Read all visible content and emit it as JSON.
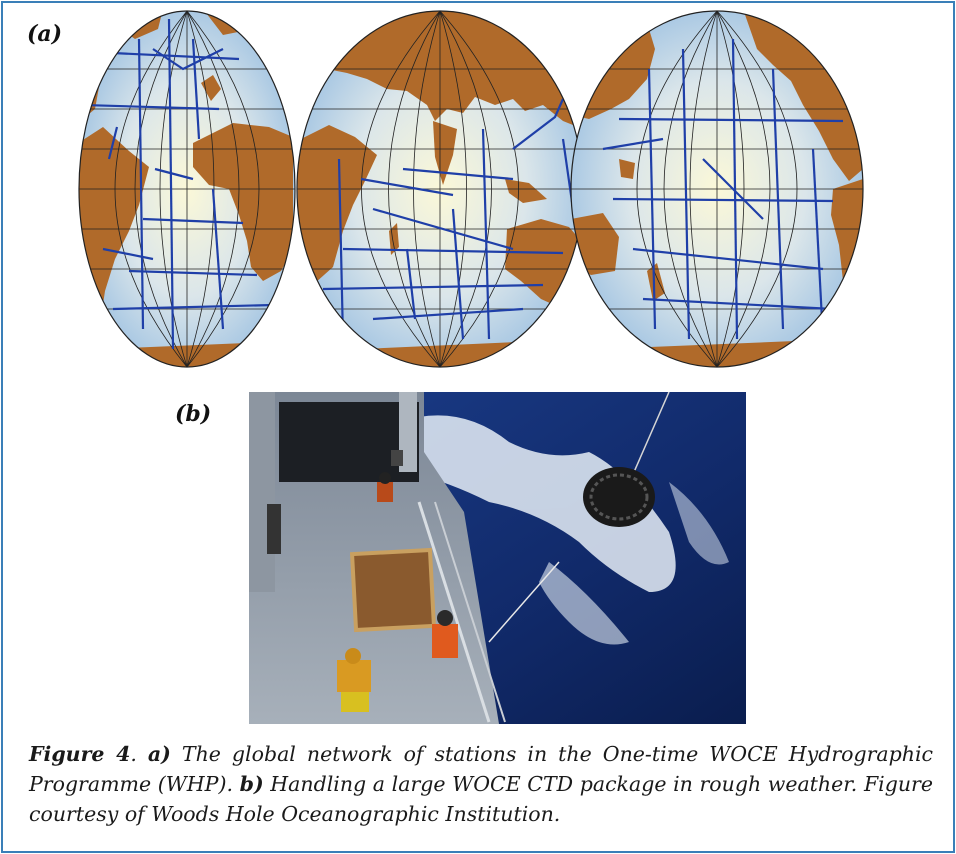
{
  "panel_a": {
    "label": "(a)"
  },
  "panel_b": {
    "label": "(b)"
  },
  "caption": {
    "figure_label": "Figure 4",
    "sep1": ". ",
    "part_a_label": "a)",
    "part_a_text": " The global network of stations in the One-time WOCE Hydrographic Programme (WHP). ",
    "part_b_label": "b)",
    "part_b_text": " Handling a large WOCE CTD package in rough weather. Figure courtesy of Woods Hole Oceanographic Institution."
  },
  "colors": {
    "frame_border": "#3a7fb8",
    "ocean_center": "#fbf8d8",
    "ocean_edge": "#9fc2e2",
    "land": "#b06a2a",
    "station_lines": "#1f3fa8",
    "graticule": "#222222"
  }
}
